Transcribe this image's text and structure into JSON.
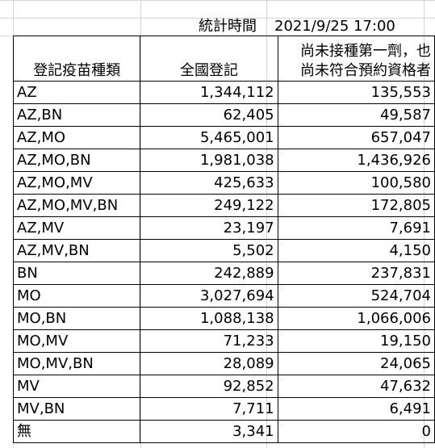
{
  "stat_time_label": "統計時間",
  "stat_time_value": "2021/9/25 17:00",
  "headers": {
    "vaccine_type": "登記疫苗種類",
    "national": "全國登記",
    "pending_line1": "尚未接種第一劑，也",
    "pending_line2": "尚未符合預約資格者"
  },
  "rows": [
    {
      "type": "AZ",
      "national": "1,344,112",
      "pending": "135,553"
    },
    {
      "type": "AZ,BN",
      "national": "62,405",
      "pending": "49,587"
    },
    {
      "type": "AZ,MO",
      "national": "5,465,001",
      "pending": "657,047"
    },
    {
      "type": "AZ,MO,BN",
      "national": "1,981,038",
      "pending": "1,436,926"
    },
    {
      "type": "AZ,MO,MV",
      "national": "425,633",
      "pending": "100,580"
    },
    {
      "type": "AZ,MO,MV,BN",
      "national": "249,122",
      "pending": "172,805"
    },
    {
      "type": "AZ,MV",
      "national": "23,197",
      "pending": "7,691"
    },
    {
      "type": "AZ,MV,BN",
      "national": "5,502",
      "pending": "4,150"
    },
    {
      "type": "BN",
      "national": "242,889",
      "pending": "237,831"
    },
    {
      "type": "MO",
      "national": "3,027,694",
      "pending": "524,704"
    },
    {
      "type": "MO,BN",
      "national": "1,088,138",
      "pending": "1,066,006"
    },
    {
      "type": "MO,MV",
      "national": "71,233",
      "pending": "19,150"
    },
    {
      "type": "MO,MV,BN",
      "national": "28,089",
      "pending": "24,065"
    },
    {
      "type": "MV",
      "national": "92,852",
      "pending": "47,632"
    },
    {
      "type": "MV,BN",
      "national": "7,711",
      "pending": "6,491"
    },
    {
      "type": "無",
      "national": "3,341",
      "pending": "0"
    }
  ]
}
